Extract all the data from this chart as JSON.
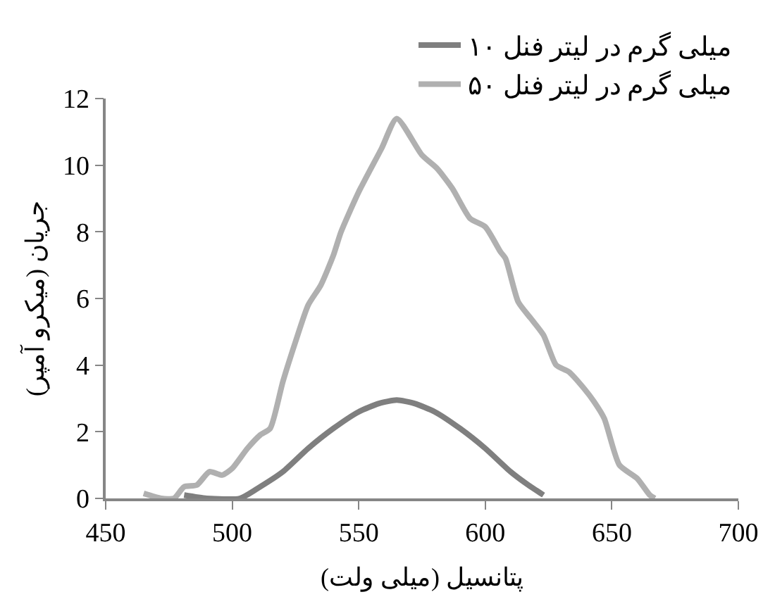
{
  "chart_data": {
    "type": "line",
    "xlabel": "پتانسیل (میلی ولت)",
    "ylabel": "جریان (میکرو آمپر)",
    "xlim": [
      450,
      700
    ],
    "xticks": [
      450,
      500,
      550,
      600,
      650,
      700
    ],
    "ylim": [
      0,
      12
    ],
    "yticks": [
      0,
      2,
      4,
      6,
      8,
      10,
      12
    ],
    "legend": "top right",
    "marker": "none",
    "line_style": "solid",
    "series": [
      {
        "name": "۱۰ میلی گرم در لیتر فنل",
        "color": "#7f7f7f",
        "x": [
          481,
          490,
          503,
          510,
          520,
          530,
          540,
          550,
          558,
          565,
          572,
          580,
          590,
          600,
          610,
          617,
          623
        ],
        "values": [
          0.1,
          0,
          0,
          0.3,
          0.8,
          1.5,
          2.1,
          2.6,
          2.85,
          2.95,
          2.85,
          2.6,
          2.1,
          1.5,
          0.8,
          0.4,
          0.1
        ]
      },
      {
        "name": "۵۰ میلی گرم در لیتر فنل",
        "color": "#b0b0b0",
        "x": [
          465,
          472,
          477,
          481,
          486,
          491,
          496,
          500,
          506,
          511,
          515,
          520,
          525,
          530,
          535,
          540,
          543,
          550,
          559,
          565,
          575,
          581,
          587,
          594,
          600,
          606,
          608,
          613,
          618,
          623,
          628,
          633,
          639,
          643,
          647,
          653,
          660,
          665,
          667
        ],
        "values": [
          0.15,
          0,
          0,
          0.35,
          0.4,
          0.8,
          0.7,
          0.9,
          1.5,
          1.9,
          2.1,
          3.5,
          4.7,
          5.8,
          6.4,
          7.3,
          8.0,
          9.2,
          10.5,
          11.4,
          10.3,
          9.9,
          9.3,
          8.4,
          8.15,
          7.4,
          7.2,
          5.9,
          5.4,
          4.9,
          4.0,
          3.8,
          3.3,
          2.9,
          2.4,
          1.0,
          0.6,
          0.1,
          0
        ]
      }
    ]
  }
}
